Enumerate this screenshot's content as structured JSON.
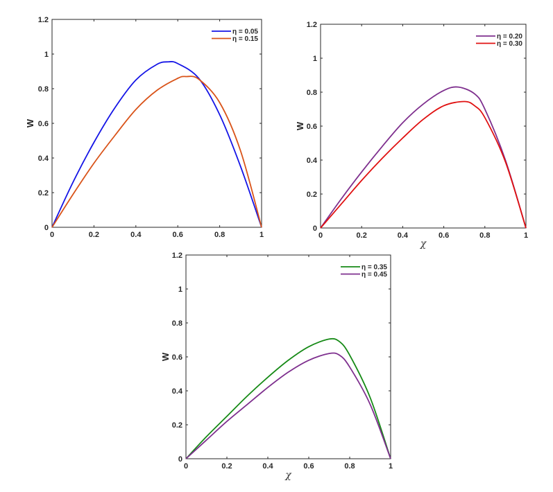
{
  "chart_data": [
    {
      "type": "line",
      "title": "",
      "xlabel": "",
      "ylabel": "W",
      "xlim": [
        0,
        1
      ],
      "ylim": [
        0,
        1.2
      ],
      "xticks": [
        "0",
        "0.2",
        "0.4",
        "0.6",
        "0.8",
        "1"
      ],
      "yticks": [
        "0",
        "0.2",
        "0.4",
        "0.6",
        "0.8",
        "1",
        "1.2"
      ],
      "legend_position": "top-right",
      "series": [
        {
          "name": "η = 0.05",
          "color": "#1414e6",
          "x": [
            0,
            0.1,
            0.2,
            0.3,
            0.4,
            0.5,
            0.555,
            0.6,
            0.7,
            0.8,
            0.9,
            1
          ],
          "y": [
            0,
            0.26,
            0.49,
            0.69,
            0.85,
            0.94,
            0.955,
            0.945,
            0.86,
            0.65,
            0.35,
            0
          ]
        },
        {
          "name": "η = 0.15",
          "color": "#d95319",
          "x": [
            0,
            0.1,
            0.2,
            0.3,
            0.4,
            0.5,
            0.6,
            0.64,
            0.7,
            0.8,
            0.9,
            1
          ],
          "y": [
            0,
            0.19,
            0.37,
            0.53,
            0.68,
            0.79,
            0.86,
            0.87,
            0.855,
            0.72,
            0.44,
            0
          ]
        }
      ]
    },
    {
      "type": "line",
      "title": "",
      "xlabel": "χ",
      "ylabel": "W",
      "xlim": [
        0,
        1
      ],
      "ylim": [
        0,
        1.2
      ],
      "xticks": [
        "0",
        "0.2",
        "0.4",
        "0.6",
        "0.8",
        "1"
      ],
      "yticks": [
        "0",
        "0.2",
        "0.4",
        "0.6",
        "0.8",
        "1",
        "1.2"
      ],
      "legend_position": "top-right",
      "series": [
        {
          "name": "η = 0.20",
          "color": "#7e2f8e",
          "x": [
            0,
            0.1,
            0.2,
            0.3,
            0.4,
            0.5,
            0.6,
            0.67,
            0.75,
            0.8,
            0.9,
            1
          ],
          "y": [
            0,
            0.17,
            0.33,
            0.48,
            0.62,
            0.73,
            0.81,
            0.83,
            0.79,
            0.7,
            0.4,
            0
          ]
        },
        {
          "name": "η = 0.30",
          "color": "#e01010",
          "x": [
            0,
            0.1,
            0.2,
            0.3,
            0.4,
            0.5,
            0.6,
            0.7,
            0.75,
            0.8,
            0.9,
            1
          ],
          "y": [
            0,
            0.14,
            0.28,
            0.41,
            0.53,
            0.64,
            0.72,
            0.745,
            0.72,
            0.65,
            0.39,
            0
          ]
        }
      ]
    },
    {
      "type": "line",
      "title": "",
      "xlabel": "χ",
      "ylabel": "W",
      "xlim": [
        0,
        1
      ],
      "ylim": [
        0,
        1.2
      ],
      "xticks": [
        "0",
        "0.2",
        "0.4",
        "0.6",
        "0.8",
        "1"
      ],
      "yticks": [
        "0",
        "0.2",
        "0.4",
        "0.6",
        "0.8",
        "1",
        "1.2"
      ],
      "legend_position": "top-right",
      "series": [
        {
          "name": "η = 0.35",
          "color": "#168a16",
          "x": [
            0,
            0.1,
            0.2,
            0.3,
            0.4,
            0.5,
            0.6,
            0.7,
            0.75,
            0.8,
            0.9,
            1
          ],
          "y": [
            0,
            0.13,
            0.25,
            0.37,
            0.48,
            0.58,
            0.66,
            0.705,
            0.69,
            0.61,
            0.36,
            0
          ]
        },
        {
          "name": "η = 0.45",
          "color": "#7e2f8e",
          "x": [
            0,
            0.1,
            0.2,
            0.3,
            0.4,
            0.5,
            0.6,
            0.7,
            0.75,
            0.8,
            0.9,
            1
          ],
          "y": [
            0,
            0.11,
            0.22,
            0.32,
            0.42,
            0.51,
            0.58,
            0.62,
            0.61,
            0.54,
            0.32,
            0
          ]
        }
      ]
    }
  ]
}
